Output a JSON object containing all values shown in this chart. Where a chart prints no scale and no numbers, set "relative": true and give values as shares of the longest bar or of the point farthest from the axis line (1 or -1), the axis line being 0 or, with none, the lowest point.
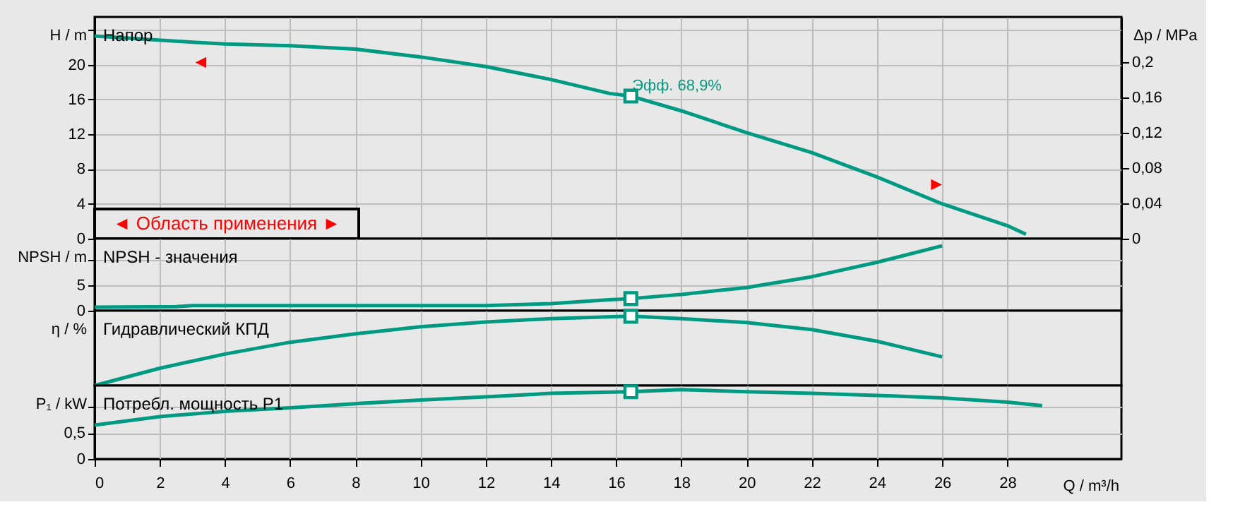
{
  "chart_data": [
    {
      "type": "line",
      "title": "Напор",
      "ylabel": "H / m",
      "y2label": "Δp / MPa",
      "xlim": [
        0,
        31.5
      ],
      "xticks": [
        0,
        2,
        4,
        6,
        8,
        10,
        12,
        14,
        16,
        18,
        20,
        22,
        24,
        26,
        28
      ],
      "ylim": [
        0,
        25.5
      ],
      "yticks": [
        0,
        4,
        8,
        12,
        16,
        20,
        {
          "value": 24,
          "label": null
        }
      ],
      "y2lim": [
        0,
        0.251
      ],
      "y2ticks": [
        0,
        {
          "value": 0.04,
          "label": "0,04"
        },
        {
          "value": 0.08,
          "label": "0,08"
        },
        {
          "value": 0.12,
          "label": "0,12"
        },
        {
          "value": 0.16,
          "label": "0,16"
        },
        {
          "value": 0.2,
          "label": "0,2"
        }
      ],
      "grid": true,
      "tick_labels": "y",
      "series": [
        {
          "color": "#009a82",
          "x": [
            0,
            3,
            4,
            6,
            8,
            10,
            12,
            14,
            15.8,
            16.45,
            18,
            20,
            22,
            24,
            26,
            28,
            28.57
          ],
          "values": [
            23.3,
            22.6,
            22.4,
            22.2,
            21.8,
            20.9,
            19.8,
            18.3,
            16.7,
            16.4,
            14.7,
            12.2,
            9.9,
            7.1,
            4.0,
            1.5,
            0.5
          ]
        },
        {
          "type": "scatter",
          "marker": "square",
          "color": "#009a82",
          "x": [
            16.45
          ],
          "values": [
            16.4
          ]
        }
      ],
      "annotations": [
        "◄ Область применения ►",
        {
          "text": "Эфф.  68,9%",
          "x": 16.45,
          "y": 16.4
        },
        {
          "text": "◄",
          "x": 3,
          "y": 22.6
        },
        {
          "text": "►",
          "x": 26,
          "y": 4.0
        }
      ]
    },
    {
      "type": "line",
      "title": "NPSH - значения",
      "ylabel": "NPSH / m",
      "xlim": [
        0,
        31.5
      ],
      "xticks": [
        0,
        2,
        4,
        6,
        8,
        10,
        12,
        14,
        16,
        18,
        20,
        22,
        24,
        26,
        28
      ],
      "ylim": [
        0,
        14
      ],
      "yticks": [
        0,
        5,
        {
          "value": 10,
          "label": null
        }
      ],
      "grid": true,
      "tick_labels": "y",
      "series": [
        {
          "color": "#009a82",
          "x": [
            0,
            2.5,
            3,
            6,
            9,
            12,
            14,
            15.7,
            16.45,
            18,
            20,
            22,
            24,
            26
          ],
          "values": [
            0.7,
            0.8,
            1.0,
            1.0,
            1.0,
            1.0,
            1.37,
            2.08,
            2.35,
            3.17,
            4.5,
            6.6,
            9.4,
            12.6
          ]
        },
        {
          "type": "scatter",
          "marker": "square",
          "color": "#009a82",
          "x": [
            16.45
          ],
          "values": [
            2.35
          ]
        }
      ]
    },
    {
      "type": "line",
      "title": "Гидравлический КПД",
      "ylabel": "η / %",
      "relative": true,
      "xlim": [
        0,
        31.5
      ],
      "xticks": [
        0,
        2,
        4,
        6,
        8,
        10,
        12,
        14,
        16,
        18,
        20,
        22,
        24,
        26,
        28
      ],
      "grid": "x",
      "tick_labels": false,
      "series": [
        {
          "color": "#009a82",
          "x": [
            0,
            2,
            4,
            6,
            8,
            10,
            12,
            14,
            16.45,
            18,
            20,
            22,
            24,
            26
          ],
          "values": [
            0,
            0.25,
            0.455,
            0.625,
            0.747,
            0.849,
            0.918,
            0.965,
            1,
            0.965,
            0.91,
            0.808,
            0.639,
            0.414
          ]
        },
        {
          "type": "scatter",
          "marker": "square",
          "color": "#009a82",
          "x": [
            16.45
          ],
          "values": [
            1
          ]
        }
      ]
    },
    {
      "type": "line",
      "title": "Потребл. мощность P1",
      "ylabel": "P₁ / kW",
      "xlabel": "Q / m³/h",
      "xlim": [
        0,
        31.5
      ],
      "xticks": [
        0,
        2,
        4,
        6,
        8,
        10,
        12,
        14,
        16,
        18,
        20,
        22,
        24,
        26,
        28
      ],
      "ylim": [
        0,
        1.42
      ],
      "yticks": [
        0,
        {
          "value": 0.5,
          "label": "0,5"
        },
        {
          "value": 1,
          "label": null
        }
      ],
      "grid": true,
      "series": [
        {
          "color": "#009a82",
          "x": [
            0,
            2,
            4,
            6,
            8,
            10,
            12,
            14,
            16.45,
            18,
            20,
            22,
            24,
            26,
            28,
            29.07
          ],
          "values": [
            0.656,
            0.82,
            0.92,
            0.99,
            1.07,
            1.14,
            1.2,
            1.27,
            1.3,
            1.34,
            1.3,
            1.27,
            1.23,
            1.18,
            1.1,
            1.03
          ]
        },
        {
          "type": "scatter",
          "marker": "square",
          "color": "#009a82",
          "x": [
            16.45
          ],
          "values": [
            1.3
          ]
        }
      ]
    }
  ]
}
